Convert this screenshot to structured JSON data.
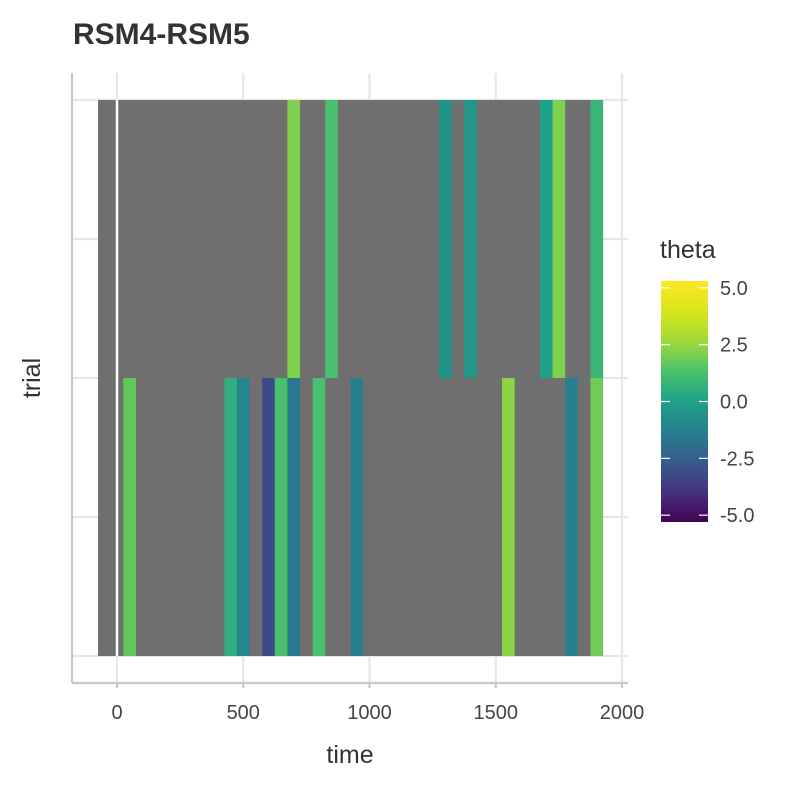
{
  "chart_data": {
    "type": "heatmap",
    "title": "RSM4-RSM5",
    "xlabel": "time",
    "ylabel": "trial",
    "xlim": [
      -180,
      2020
    ],
    "xticks": [
      0,
      500,
      1000,
      1500,
      2000
    ],
    "xtick_labels": [
      "0",
      "500",
      "1000",
      "1500",
      "2000"
    ],
    "rows": 2,
    "na_color": "#6f6f6f",
    "vline_x": 0,
    "grid": true,
    "colorbar": {
      "title": "theta",
      "min": -5,
      "max": 5,
      "ticks": [
        5,
        2.5,
        0,
        -2.5,
        -5
      ],
      "tick_labels": [
        "5.0",
        "2.5",
        "0.0",
        "-2.5",
        "-5.0"
      ],
      "palette": "viridis"
    },
    "cells": [
      {
        "row": 1,
        "x0": 675,
        "x1": 725,
        "theta": 2.0
      },
      {
        "row": 1,
        "x0": 825,
        "x1": 875,
        "theta": 1.2
      },
      {
        "row": 1,
        "x0": 1275,
        "x1": 1325,
        "theta": -0.5
      },
      {
        "row": 1,
        "x0": 1375,
        "x1": 1425,
        "theta": -0.4
      },
      {
        "row": 1,
        "x0": 1675,
        "x1": 1725,
        "theta": 0.0
      },
      {
        "row": 1,
        "x0": 1725,
        "x1": 1775,
        "theta": 2.0
      },
      {
        "row": 1,
        "x0": 1875,
        "x1": 1925,
        "theta": 0.8
      },
      {
        "row": 0,
        "x0": 25,
        "x1": 75,
        "theta": 1.6
      },
      {
        "row": 0,
        "x0": 425,
        "x1": 475,
        "theta": 0.5
      },
      {
        "row": 0,
        "x0": 475,
        "x1": 525,
        "theta": -1.0
      },
      {
        "row": 0,
        "x0": 575,
        "x1": 625,
        "theta": -3.0
      },
      {
        "row": 0,
        "x0": 625,
        "x1": 675,
        "theta": 1.2
      },
      {
        "row": 0,
        "x0": 675,
        "x1": 725,
        "theta": -1.5
      },
      {
        "row": 0,
        "x0": 775,
        "x1": 825,
        "theta": 1.2
      },
      {
        "row": 0,
        "x0": 925,
        "x1": 975,
        "theta": -1.3
      },
      {
        "row": 0,
        "x0": 1525,
        "x1": 1575,
        "theta": 2.2
      },
      {
        "row": 0,
        "x0": 1775,
        "x1": 1825,
        "theta": -1.2
      },
      {
        "row": 0,
        "x0": 1875,
        "x1": 1925,
        "theta": 1.8
      }
    ]
  }
}
